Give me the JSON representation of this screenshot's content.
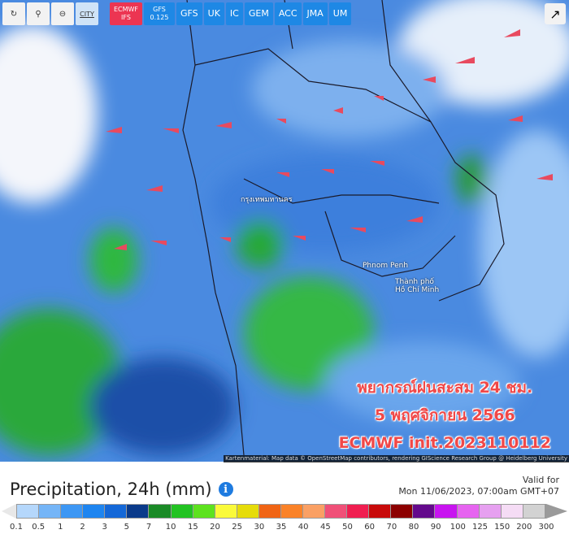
{
  "toolbar": {
    "icons": [
      "refresh-icon",
      "location-pin-icon",
      "zoom-out-icon"
    ],
    "city_label": "CITY",
    "models": [
      {
        "label": "ECMWF IFS",
        "active": true
      },
      {
        "label": "GFS 0.125"
      },
      {
        "label": "GFS"
      },
      {
        "label": "UK"
      },
      {
        "label": "IC"
      },
      {
        "label": "GEM"
      },
      {
        "label": "ACC"
      },
      {
        "label": "JMA"
      },
      {
        "label": "UM"
      }
    ]
  },
  "map": {
    "places": [
      "กรุงเทพมหานคร",
      "Phnom Penh",
      "Thành phố",
      "Hồ Chí Minh"
    ],
    "overlay": [
      "พยากรณ์ฝนสะสม 24 ชม.",
      "5 พฤศจิกายน 2566",
      "ECMWF init.2023110112"
    ],
    "attribution": "Kartenmaterial: Map data © OpenStreetMap contributors, rendering GIScience Research Group @ Heidelberg University"
  },
  "legend": {
    "title": "Precipitation, 24h (mm)",
    "valid_label": "Valid for",
    "valid_time": "Mon 11/06/2023, 07:00am GMT+07",
    "ticks": [
      "0.1",
      "0.5",
      "1",
      "2",
      "3",
      "5",
      "7",
      "10",
      "15",
      "20",
      "25",
      "30",
      "35",
      "40",
      "45",
      "50",
      "60",
      "70",
      "80",
      "90",
      "100",
      "125",
      "150",
      "200",
      "300"
    ],
    "colors": [
      "#b5d7fb",
      "#75b5f7",
      "#3d97f4",
      "#1e85f0",
      "#1468d8",
      "#0a3a8a",
      "#1a8a26",
      "#22c322",
      "#5de21e",
      "#fafa3a",
      "#e6dc0a",
      "#f06414",
      "#fa8228",
      "#faa064",
      "#f05078",
      "#f01e50",
      "#c80a0a",
      "#8c0000",
      "#640a8c",
      "#c814f0",
      "#e664f0",
      "#e6a0f0",
      "#f5dcf5",
      "#d2d2d2"
    ],
    "under_color": "#e8e8e8",
    "over_color": "#9a9a9a"
  }
}
